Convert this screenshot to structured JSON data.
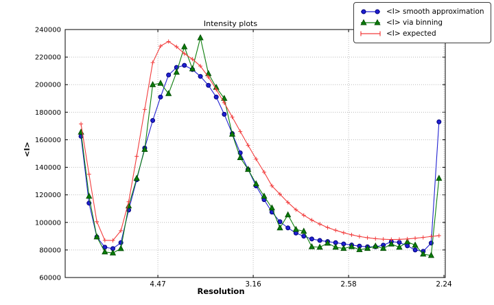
{
  "chart_data": {
    "type": "line",
    "title": "Intensity plots",
    "xlabel": "Resolution",
    "ylabel": "<I>",
    "xlim": [
      0.0014,
      0.2007
    ],
    "ylim": [
      60000,
      240000
    ],
    "grid": true,
    "legend_position": "top-right",
    "xticks": [
      {
        "value": 0.05,
        "label": "4.47"
      },
      {
        "value": 0.1,
        "label": "3.16"
      },
      {
        "value": 0.15,
        "label": "2.58"
      },
      {
        "value": 0.2,
        "label": "2.24"
      }
    ],
    "yticks": [
      {
        "value": 60000,
        "label": "60000"
      },
      {
        "value": 80000,
        "label": "80000"
      },
      {
        "value": 100000,
        "label": "100000"
      },
      {
        "value": 120000,
        "label": "120000"
      },
      {
        "value": 140000,
        "label": "140000"
      },
      {
        "value": 160000,
        "label": "160000"
      },
      {
        "value": 180000,
        "label": "180000"
      },
      {
        "value": 200000,
        "label": "200000"
      },
      {
        "value": 220000,
        "label": "220000"
      },
      {
        "value": 240000,
        "label": "240000"
      }
    ],
    "x": [
      0.0097,
      0.0139,
      0.018,
      0.0222,
      0.0264,
      0.0306,
      0.0347,
      0.0389,
      0.0431,
      0.0473,
      0.0514,
      0.0556,
      0.0598,
      0.0639,
      0.0681,
      0.0723,
      0.0765,
      0.0806,
      0.0848,
      0.089,
      0.0932,
      0.0973,
      0.1015,
      0.1057,
      0.1098,
      0.114,
      0.1182,
      0.1224,
      0.1265,
      0.1307,
      0.1349,
      0.139,
      0.1432,
      0.1474,
      0.1516,
      0.1557,
      0.1599,
      0.1641,
      0.1682,
      0.1724,
      0.1766,
      0.1808,
      0.1849,
      0.1891,
      0.1933,
      0.1974
    ],
    "series": [
      {
        "name": "<I> smooth approximation",
        "color": "#1f1fd1",
        "edge": "#00007a",
        "marker": "circle",
        "values": [
          162500,
          114000,
          89400,
          82000,
          81000,
          85300,
          109000,
          131000,
          154000,
          174000,
          191000,
          207000,
          212500,
          214000,
          211000,
          206000,
          199500,
          191000,
          178500,
          164500,
          150500,
          138500,
          126500,
          116500,
          107500,
          100500,
          96000,
          92300,
          90000,
          88000,
          86900,
          86100,
          85300,
          84400,
          83600,
          82800,
          82300,
          82300,
          83500,
          86000,
          85500,
          83000,
          80000,
          79000,
          85000,
          173000
        ]
      },
      {
        "name": "<I> via binning",
        "color": "#0a7d0a",
        "edge": "#024d02",
        "marker": "triangle",
        "values": [
          165500,
          119000,
          89500,
          78600,
          77800,
          81000,
          112000,
          132000,
          153000,
          200000,
          201000,
          193500,
          209000,
          227500,
          211500,
          234000,
          208000,
          198000,
          190000,
          164000,
          147000,
          138500,
          128000,
          119000,
          110500,
          96000,
          105500,
          94900,
          93600,
          82300,
          82000,
          84900,
          82000,
          81100,
          82400,
          80250,
          81100,
          82800,
          81100,
          84300,
          82000,
          85900,
          83500,
          77000,
          76000,
          132000
        ]
      },
      {
        "name": "<I> expected",
        "color": "#f23b3b",
        "edge": "#f23b3b",
        "marker": "plus",
        "values": [
          171500,
          135000,
          100500,
          87000,
          86900,
          94000,
          115000,
          148000,
          182000,
          216000,
          228000,
          231300,
          227500,
          222500,
          218500,
          213500,
          205500,
          196500,
          186800,
          176500,
          166000,
          156000,
          146000,
          136500,
          126500,
          120500,
          114500,
          109200,
          105200,
          101700,
          98800,
          96300,
          94300,
          92500,
          91000,
          89800,
          88900,
          88200,
          87800,
          87600,
          87700,
          88000,
          88500,
          89100,
          89800,
          90400
        ]
      }
    ]
  }
}
